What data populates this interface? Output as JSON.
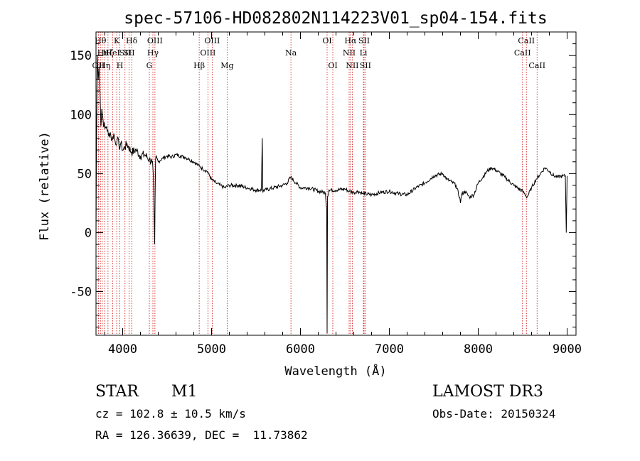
{
  "chart_data": {
    "type": "line",
    "title": "spec-57106-HD082802N114223V01_sp04-154.fits",
    "xlabel": "Wavelength (Å)",
    "ylabel": "Flux (relative)",
    "xlim": [
      3700,
      9100
    ],
    "ylim": [
      -87,
      170
    ],
    "x_ticks": [
      4000,
      5000,
      6000,
      7000,
      8000,
      9000
    ],
    "y_ticks": [
      -50,
      0,
      50,
      100,
      150
    ],
    "grid": false,
    "series": [
      {
        "x": [
          3700,
          3705,
          3715,
          3725,
          3735,
          3745,
          3755,
          3765,
          3780,
          3800,
          3820,
          3840,
          3860,
          3880,
          3900,
          3920,
          3940,
          3960,
          3980,
          4000,
          4050,
          4100,
          4150,
          4200,
          4250,
          4300,
          4330,
          4340,
          4350,
          4360,
          4365,
          4370,
          4400,
          4450,
          4500,
          4550,
          4600,
          4650,
          4700,
          4750,
          4800,
          4850,
          4900,
          4950,
          5000,
          5050,
          5100,
          5150,
          5200,
          5300,
          5400,
          5500,
          5560,
          5570,
          5577,
          5585,
          5600,
          5700,
          5800,
          5850,
          5890,
          5950,
          6000,
          6100,
          6200,
          6280,
          6295,
          6300,
          6305,
          6320,
          6400,
          6500,
          6550,
          6600,
          6650,
          6700,
          6800,
          6900,
          7000,
          7100,
          7200,
          7300,
          7400,
          7500,
          7600,
          7650,
          7700,
          7750,
          7790,
          7800,
          7810,
          7850,
          7900,
          7950,
          8000,
          8100,
          8150,
          8200,
          8250,
          8300,
          8400,
          8500,
          8550,
          8600,
          8650,
          8700,
          8750,
          8800,
          8850,
          8900,
          8950,
          8980,
          8990,
          9000
        ],
        "values": [
          -5,
          70,
          150,
          130,
          140,
          120,
          90,
          105,
          95,
          88,
          90,
          82,
          85,
          78,
          84,
          75,
          80,
          72,
          76,
          70,
          75,
          68,
          70,
          65,
          66,
          62,
          60,
          55,
          35,
          -10,
          30,
          62,
          60,
          63,
          65,
          64,
          66,
          65,
          64,
          62,
          60,
          57,
          54,
          52,
          45,
          42,
          40,
          38,
          40,
          40,
          38,
          36,
          36,
          80,
          34,
          36,
          36,
          38,
          40,
          42,
          47,
          42,
          38,
          38,
          35,
          34,
          20,
          -85,
          30,
          36,
          36,
          37,
          35,
          34,
          35,
          33,
          32,
          34,
          35,
          33,
          32,
          38,
          42,
          48,
          50,
          45,
          43,
          40,
          30,
          25,
          32,
          35,
          30,
          32,
          42,
          52,
          55,
          53,
          50,
          47,
          40,
          35,
          30,
          38,
          45,
          50,
          55,
          52,
          48,
          47,
          48,
          48,
          0,
          48
        ]
      }
    ],
    "lines": [
      {
        "wl": 3727,
        "label": "OII",
        "row": 2
      },
      {
        "wl": 3750,
        "label": "Hθ",
        "row": 0
      },
      {
        "wl": 3770,
        "label": "Hι",
        "row": 1
      },
      {
        "wl": 3798,
        "label": "Hη",
        "row": 2
      },
      {
        "wl": 3835,
        "label": "Hζ",
        "row": 1
      },
      {
        "wl": 3889,
        "label": "HeI",
        "row": 1
      },
      {
        "wl": 3933,
        "label": "K",
        "row": 0
      },
      {
        "wl": 3968,
        "label": "H",
        "row": 2
      },
      {
        "wl": 4026,
        "label": "SII",
        "row": 1
      },
      {
        "wl": 4101,
        "label": "Hδ",
        "row": 0
      },
      {
        "wl": 4072,
        "label": "SII",
        "row": 1
      },
      {
        "wl": 4300,
        "label": "G",
        "row": 2
      },
      {
        "wl": 4340,
        "label": "Hγ",
        "row": 1
      },
      {
        "wl": 4363,
        "label": "OIII",
        "row": 0
      },
      {
        "wl": 4861,
        "label": "Hβ",
        "row": 2
      },
      {
        "wl": 4959,
        "label": "OIII",
        "row": 1
      },
      {
        "wl": 5007,
        "label": "OIII",
        "row": 0
      },
      {
        "wl": 5175,
        "label": "Mg",
        "row": 2
      },
      {
        "wl": 5893,
        "label": "Na",
        "row": 1
      },
      {
        "wl": 6300,
        "label": "OI",
        "row": 0
      },
      {
        "wl": 6364,
        "label": "OI",
        "row": 2
      },
      {
        "wl": 6548,
        "label": "NII",
        "row": 1
      },
      {
        "wl": 6563,
        "label": "Hα",
        "row": 0
      },
      {
        "wl": 6583,
        "label": "NII",
        "row": 2
      },
      {
        "wl": 6708,
        "label": "Li",
        "row": 1
      },
      {
        "wl": 6716,
        "label": "SII",
        "row": 0
      },
      {
        "wl": 6731,
        "label": "SII",
        "row": 2
      },
      {
        "wl": 8498,
        "label": "CaII",
        "row": 1
      },
      {
        "wl": 8542,
        "label": "CaII",
        "row": 0
      },
      {
        "wl": 8662,
        "label": "CaII",
        "row": 2
      }
    ]
  },
  "info": {
    "object_class": "STAR",
    "subclass": "M1",
    "survey": "LAMOST DR3",
    "cz": "cz = 102.8 ± 10.5 km/s",
    "obs_date": "Obs-Date: 20150324",
    "coords": "RA = 126.36639, DEC =  11.73862"
  }
}
